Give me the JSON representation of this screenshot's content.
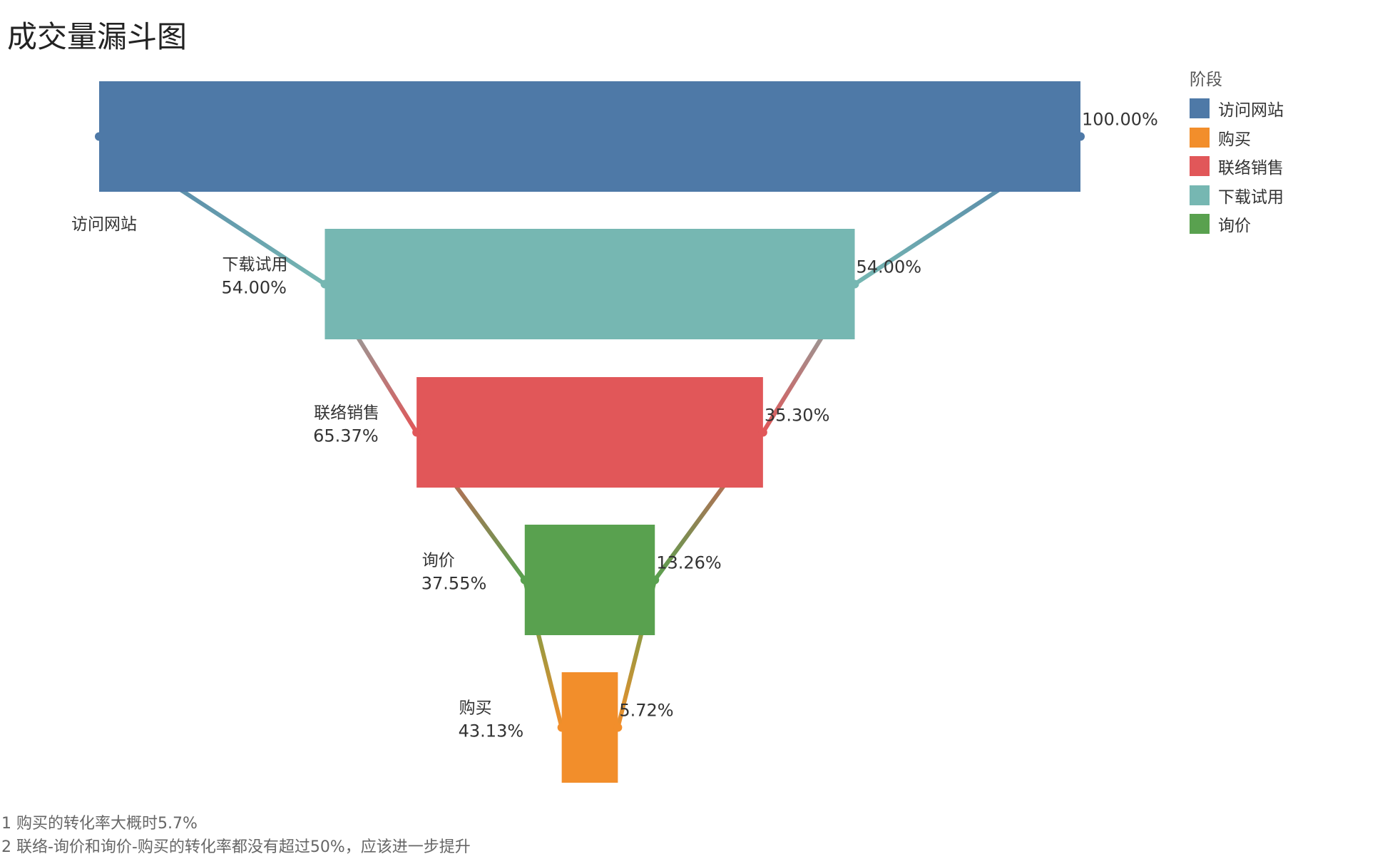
{
  "chart_data": {
    "type": "funnel",
    "title": "成交量漏斗图",
    "legend": {
      "title": "阶段",
      "position": "right",
      "items": [
        {
          "label": "访问网站",
          "color": "#4E79A7"
        },
        {
          "label": "购买",
          "color": "#F28E2B"
        },
        {
          "label": "联络销售",
          "color": "#E15759"
        },
        {
          "label": "下载试用",
          "color": "#76B7B2"
        },
        {
          "label": "询价",
          "color": "#59A14F"
        }
      ]
    },
    "stages": [
      {
        "name": "访问网站",
        "total_pct": 100.0,
        "total_label": "100.00%",
        "step_label": "",
        "color": "#4E79A7"
      },
      {
        "name": "下载试用",
        "total_pct": 54.0,
        "total_label": "54.00%",
        "step_label": "54.00%",
        "color": "#76B7B2"
      },
      {
        "name": "联络销售",
        "total_pct": 35.3,
        "total_label": "35.30%",
        "step_label": "65.37%",
        "color": "#E15759"
      },
      {
        "name": "询价",
        "total_pct": 13.26,
        "total_label": "13.26%",
        "step_label": "37.55%",
        "color": "#59A14F"
      },
      {
        "name": "购买",
        "total_pct": 5.72,
        "total_label": "5.72%",
        "step_label": "43.13%",
        "color": "#F28E2B"
      }
    ]
  },
  "notes": [
    "1 购买的转化率大概时5.7%",
    "2 联络-询价和询价-购买的转化率都没有超过50%，应该进一步提升"
  ]
}
